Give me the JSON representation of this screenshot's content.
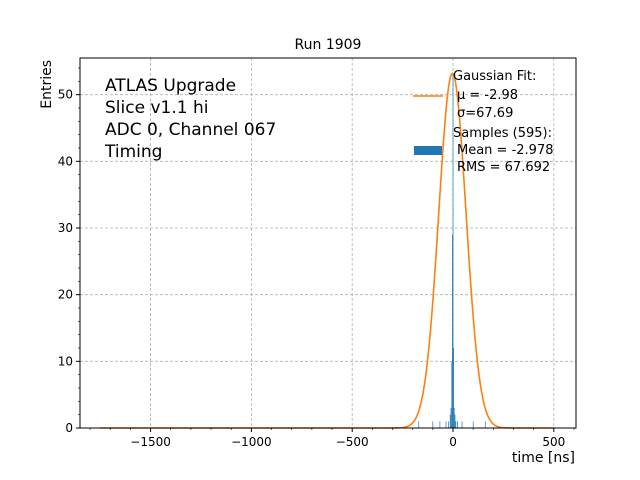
{
  "chart_data": {
    "type": "bar",
    "title": "Run 1909",
    "xlabel": "time [ns]",
    "ylabel": "Entries",
    "xlim": [
      -1850,
      610
    ],
    "ylim": [
      0,
      55.5
    ],
    "xticks": [
      -1500,
      -1000,
      -500,
      0,
      500
    ],
    "xtick_labels": [
      "−1500",
      "−1000",
      "−500",
      "0",
      "500"
    ],
    "yticks": [
      0,
      10,
      20,
      30,
      40,
      50
    ],
    "ytick_labels": [
      "0",
      "10",
      "20",
      "30",
      "40",
      "50"
    ],
    "grid": true,
    "annotation": [
      "ATLAS Upgrade",
      "Slice v1.1 hi",
      "ADC 0, Channel 067",
      "Timing"
    ],
    "legend": {
      "placement": "top-right",
      "entries": [
        {
          "kind": "line",
          "color": "#ff7f0e",
          "lines": [
            "Gaussian Fit:",
            "μ = -2.98",
            "σ=67.69"
          ]
        },
        {
          "kind": "patch",
          "color": "#1f77b4",
          "lines": [
            "Samples (595):",
            "Mean = -2.978",
            "RMS = 67.692"
          ]
        }
      ]
    },
    "series": [
      {
        "name": "Gaussian Fit:",
        "type": "line",
        "color": "#ff7f0e",
        "function": "gaussian",
        "amplitude": 53.2,
        "mu": -2.98,
        "sigma": 67.69,
        "x_range": [
          -1750,
          500
        ]
      },
      {
        "name": "Samples (595):",
        "type": "histogram",
        "color": "#1f77b4",
        "bin_width": 3.5,
        "bins": [
          {
            "x": -170,
            "y": 1
          },
          {
            "x": -100,
            "y": 1
          },
          {
            "x": -65,
            "y": 1
          },
          {
            "x": -35,
            "y": 1
          },
          {
            "x": -22,
            "y": 1
          },
          {
            "x": -14,
            "y": 2
          },
          {
            "x": -10,
            "y": 3
          },
          {
            "x": -6,
            "y": 10
          },
          {
            "x": -3,
            "y": 29
          },
          {
            "x": 0,
            "y": 53
          },
          {
            "x": 3,
            "y": 12
          },
          {
            "x": 6,
            "y": 3
          },
          {
            "x": 10,
            "y": 2
          },
          {
            "x": 14,
            "y": 1
          },
          {
            "x": 22,
            "y": 1
          },
          {
            "x": 45,
            "y": 1
          },
          {
            "x": 100,
            "y": 1
          },
          {
            "x": 160,
            "y": 1
          }
        ]
      }
    ]
  }
}
